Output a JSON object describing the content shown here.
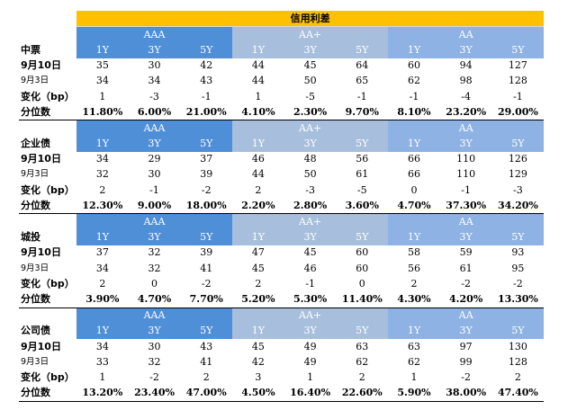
{
  "title": "信用利差",
  "tenors": [
    "1Y",
    "3Y",
    "5Y"
  ],
  "blocks": [
    {
      "name": "中票",
      "groups": [
        "AAA",
        "AA+",
        "AA"
      ],
      "rows": [
        {
          "label": "9月10日",
          "values": [
            "35",
            "30",
            "42",
            "44",
            "45",
            "64",
            "60",
            "94",
            "127"
          ]
        },
        {
          "label": "9月3日",
          "values": [
            "34",
            "34",
            "43",
            "44",
            "50",
            "65",
            "62",
            "98",
            "128"
          ]
        },
        {
          "label": "变化（bp）",
          "values": [
            "1",
            "-3",
            "-1",
            "1",
            "-5",
            "-1",
            "-1",
            "-4",
            "-1"
          ]
        },
        {
          "label": "分位数",
          "values": [
            "11.80%",
            "6.00%",
            "21.00%",
            "4.10%",
            "2.30%",
            "9.70%",
            "8.10%",
            "23.20%",
            "29.00%"
          ]
        }
      ]
    },
    {
      "name": "企业债",
      "groups": [
        "AAA",
        "AA+",
        "AA"
      ],
      "rows": [
        {
          "label": "9月10日",
          "values": [
            "34",
            "29",
            "37",
            "46",
            "48",
            "56",
            "66",
            "110",
            "126"
          ]
        },
        {
          "label": "9月3日",
          "values": [
            "32",
            "30",
            "39",
            "44",
            "50",
            "61",
            "66",
            "110",
            "129"
          ]
        },
        {
          "label": "变化（bp）",
          "values": [
            "2",
            "-1",
            "-2",
            "2",
            "-3",
            "-5",
            "0",
            "-1",
            "-3"
          ]
        },
        {
          "label": "分位数",
          "values": [
            "12.30%",
            "9.00%",
            "18.00%",
            "2.20%",
            "2.80%",
            "3.60%",
            "4.70%",
            "37.30%",
            "34.20%"
          ]
        }
      ]
    },
    {
      "name": "城投",
      "groups": [
        "AAA",
        "AA+",
        "AA"
      ],
      "rows": [
        {
          "label": "9月10日",
          "values": [
            "37",
            "32",
            "39",
            "47",
            "45",
            "60",
            "58",
            "59",
            "93"
          ]
        },
        {
          "label": "9月3日",
          "values": [
            "34",
            "32",
            "41",
            "45",
            "46",
            "60",
            "56",
            "61",
            "95"
          ]
        },
        {
          "label": "变化（bp）",
          "values": [
            "2",
            "0",
            "-2",
            "2",
            "-1",
            "0",
            "2",
            "-2",
            "-2"
          ]
        },
        {
          "label": "分位数",
          "values": [
            "3.90%",
            "4.70%",
            "7.70%",
            "5.20%",
            "5.30%",
            "11.40%",
            "4.30%",
            "4.20%",
            "13.30%"
          ]
        }
      ]
    },
    {
      "name": "公司债",
      "groups": [
        "AAA",
        "AA+",
        "AA"
      ],
      "rows": [
        {
          "label": "9月10日",
          "values": [
            "34",
            "30",
            "43",
            "45",
            "49",
            "63",
            "63",
            "97",
            "130"
          ]
        },
        {
          "label": "9月3日",
          "values": [
            "33",
            "32",
            "41",
            "42",
            "49",
            "62",
            "62",
            "99",
            "128"
          ]
        },
        {
          "label": "变化（bp）",
          "values": [
            "1",
            "-2",
            "2",
            "3",
            "1",
            "2",
            "1",
            "-2",
            "2"
          ]
        },
        {
          "label": "分位数",
          "values": [
            "13.20%",
            "23.40%",
            "47.00%",
            "4.50%",
            "16.40%",
            "22.60%",
            "5.90%",
            "38.00%",
            "47.40%"
          ]
        }
      ]
    }
  ]
}
